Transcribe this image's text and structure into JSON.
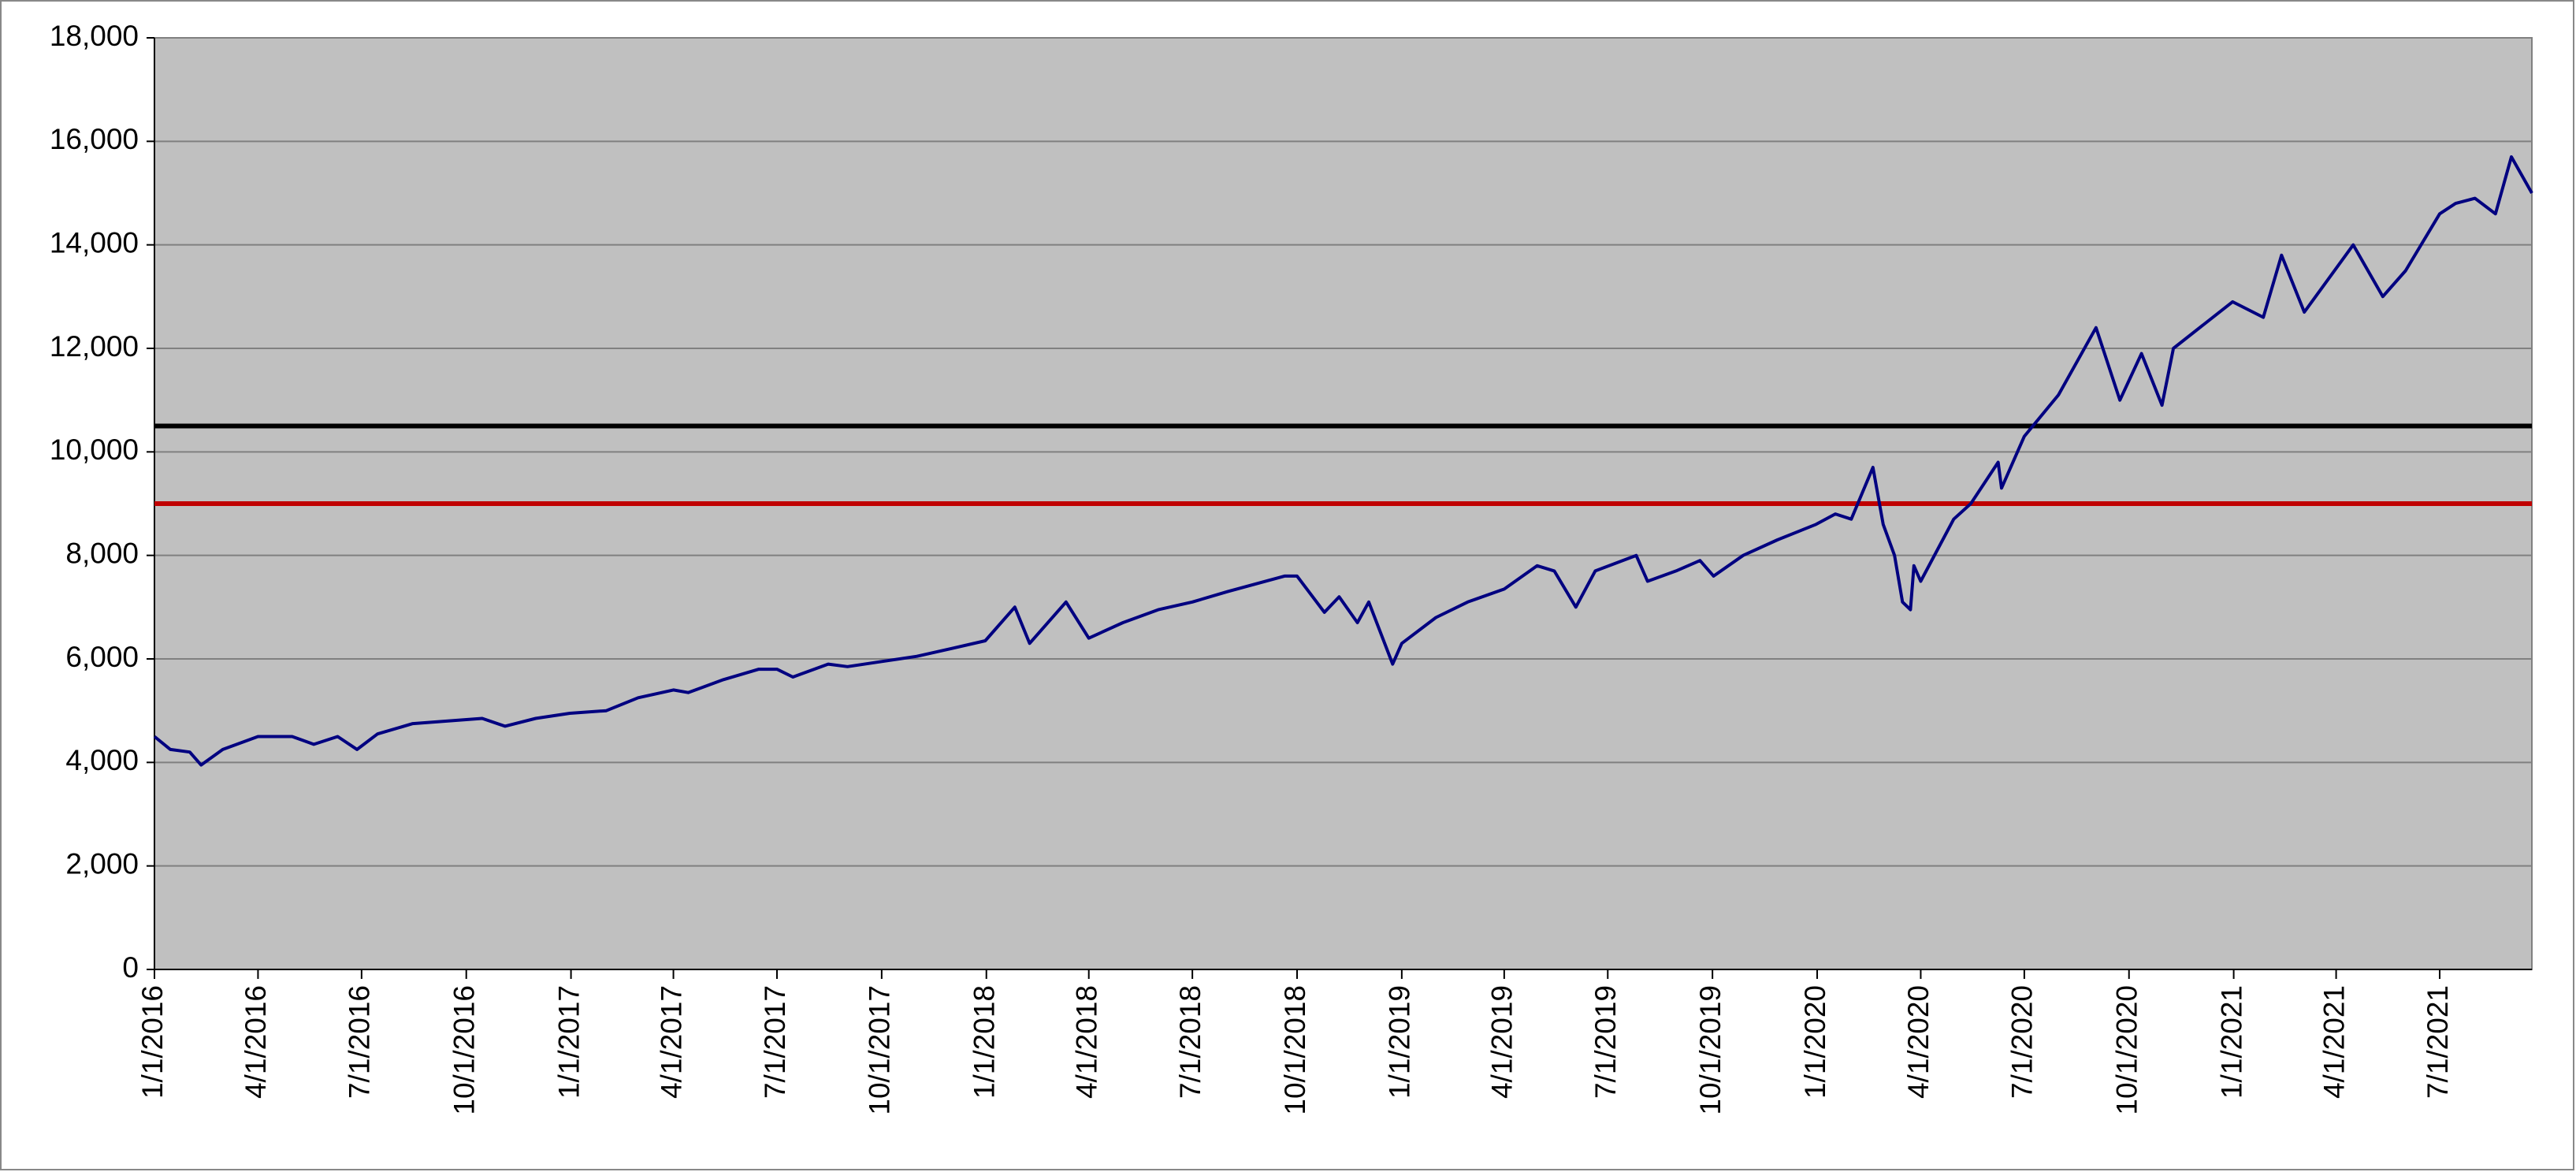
{
  "chart_data": {
    "type": "line",
    "x": [
      "1/1/2016",
      "1/15/2016",
      "2/1/2016",
      "2/11/2016",
      "3/1/2016",
      "4/1/2016",
      "5/1/2016",
      "5/20/2016",
      "6/10/2016",
      "6/27/2016",
      "7/15/2016",
      "8/15/2016",
      "9/15/2016",
      "10/15/2016",
      "11/4/2016",
      "12/1/2016",
      "12/31/2016",
      "2/1/2017",
      "3/1/2017",
      "4/1/2017",
      "4/14/2017",
      "5/15/2017",
      "6/15/2017",
      "7/1/2017",
      "7/15/2017",
      "8/15/2017",
      "9/1/2017",
      "10/1/2017",
      "11/1/2017",
      "12/1/2017",
      "12/31/2017",
      "1/26/2018",
      "2/8/2018",
      "3/12/2018",
      "4/1/2018",
      "5/1/2018",
      "6/1/2018",
      "7/1/2018",
      "8/1/2018",
      "9/20/2018",
      "10/1/2018",
      "10/25/2018",
      "11/7/2018",
      "11/23/2018",
      "12/3/2018",
      "12/24/2018",
      "1/1/2019",
      "1/31/2019",
      "2/28/2019",
      "4/1/2019",
      "4/30/2019",
      "5/15/2019",
      "6/3/2019",
      "6/20/2019",
      "7/26/2019",
      "8/5/2019",
      "8/30/2019",
      "9/20/2019",
      "10/2/2019",
      "10/28/2019",
      "11/27/2019",
      "12/31/2019",
      "1/17/2020",
      "1/31/2020",
      "2/19/2020",
      "2/28/2020",
      "3/9/2020",
      "3/16/2020",
      "3/23/2020",
      "3/26/2020",
      "4/1/2020",
      "4/30/2020",
      "5/15/2020",
      "6/8/2020",
      "6/11/2020",
      "7/1/2020",
      "7/31/2020",
      "9/2/2020",
      "9/23/2020",
      "10/12/2020",
      "10/30/2020",
      "11/9/2020",
      "12/31/2020",
      "1/27/2021",
      "2/12/2021",
      "3/4/2021",
      "4/16/2021",
      "5/12/2021",
      "6/1/2021",
      "7/1/2021",
      "7/15/2021",
      "8/1/2021",
      "8/19/2021",
      "9/2/2021",
      "9/20/2021"
    ],
    "values": [
      4500,
      4250,
      4200,
      3950,
      4250,
      4500,
      4500,
      4350,
      4500,
      4250,
      4550,
      4750,
      4800,
      4850,
      4700,
      4850,
      4950,
      5000,
      5250,
      5400,
      5350,
      5600,
      5800,
      5800,
      5650,
      5900,
      5850,
      5950,
      6050,
      6200,
      6350,
      7000,
      6300,
      7100,
      6400,
      6700,
      6950,
      7100,
      7300,
      7600,
      7600,
      6900,
      7200,
      6700,
      7100,
      5900,
      6300,
      6800,
      7100,
      7350,
      7800,
      7700,
      7000,
      7700,
      8000,
      7500,
      7700,
      7900,
      7600,
      8000,
      8300,
      8600,
      8800,
      8700,
      9700,
      8600,
      8000,
      7100,
      6950,
      7800,
      7500,
      8700,
      9000,
      9800,
      9300,
      10300,
      11100,
      12400,
      11000,
      11900,
      10900,
      12000,
      12900,
      12600,
      13800,
      12700,
      14000,
      13000,
      13500,
      14600,
      14800,
      14900,
      14600,
      15700,
      15000
    ],
    "color": "#000080",
    "reference_lines": [
      {
        "value": 10500,
        "color": "#000000"
      },
      {
        "value": 9000,
        "color": "#c00000"
      }
    ],
    "xlim": [
      "1/1/2016",
      "9/20/2021"
    ],
    "xticks": [
      "1/1/2016",
      "4/1/2016",
      "7/1/2016",
      "10/1/2016",
      "1/1/2017",
      "4/1/2017",
      "7/1/2017",
      "10/1/2017",
      "1/1/2018",
      "4/1/2018",
      "7/1/2018",
      "10/1/2018",
      "1/1/2019",
      "4/1/2019",
      "7/1/2019",
      "10/1/2019",
      "1/1/2020",
      "4/1/2020",
      "7/1/2020",
      "10/1/2020",
      "1/1/2021",
      "4/1/2021",
      "7/1/2021"
    ],
    "ylim": [
      0,
      18000
    ],
    "yticks": [
      0,
      {
        "value": 2000,
        "label": "2,000"
      },
      {
        "value": 4000,
        "label": "4,000"
      },
      {
        "value": 6000,
        "label": "6,000"
      },
      {
        "value": 8000,
        "label": "8,000"
      },
      {
        "value": 10000,
        "label": "10,000"
      },
      {
        "value": 12000,
        "label": "12,000"
      },
      {
        "value": 14000,
        "label": "14,000"
      },
      {
        "value": 16000,
        "label": "16,000"
      },
      {
        "value": 18000,
        "label": "18,000"
      }
    ],
    "grid": true
  }
}
